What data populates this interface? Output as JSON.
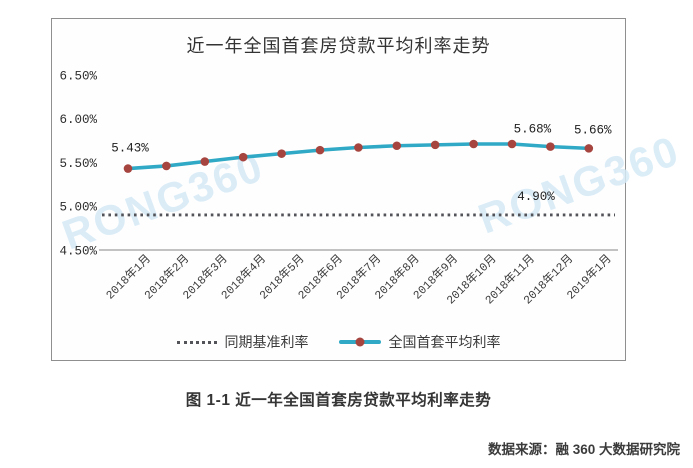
{
  "chart_data": {
    "type": "line",
    "title": "近一年全国首套房贷款平均利率走势",
    "categories": [
      "2018年1月",
      "2018年2月",
      "2018年3月",
      "2018年4月",
      "2018年5月",
      "2018年6月",
      "2018年7月",
      "2018年8月",
      "2018年9月",
      "2018年10月",
      "2018年11月",
      "2018年12月",
      "2019年1月"
    ],
    "series": [
      {
        "name": "同期基准利率",
        "style": "dotted",
        "color": "#53535a",
        "values": [
          4.9,
          4.9,
          4.9,
          4.9,
          4.9,
          4.9,
          4.9,
          4.9,
          4.9,
          4.9,
          4.9,
          4.9,
          4.9
        ]
      },
      {
        "name": "全国首套平均利率",
        "style": "solid-marker",
        "color": "#2fa9c5",
        "marker_color": "#a6453f",
        "values": [
          5.43,
          5.46,
          5.51,
          5.56,
          5.6,
          5.64,
          5.67,
          5.69,
          5.7,
          5.71,
          5.71,
          5.68,
          5.66
        ]
      }
    ],
    "y_ticks": [
      "6.50%",
      "6.00%",
      "5.50%",
      "5.00%",
      "4.50%"
    ],
    "ylim": [
      4.5,
      6.5
    ],
    "point_labels": [
      {
        "series": 1,
        "index": 0,
        "text": "5.43%"
      },
      {
        "series": 1,
        "index": 11,
        "text": "5.68%"
      },
      {
        "series": 1,
        "index": 12,
        "text": "5.66%"
      },
      {
        "series": 0,
        "index": 10,
        "text": "4.90%"
      }
    ],
    "legend_position": "bottom",
    "grid": false
  },
  "watermark": "RONG360",
  "caption": "图 1-1 近一年全国首套房贷款平均利率走势",
  "source": "数据来源：融 360 大数据研究院",
  "colors": {
    "line": "#2fa9c5",
    "marker": "#a6453f",
    "benchmark_dotted": "#53535a",
    "axis_line": "#aeaeae",
    "box_border": "#8f8f8f",
    "watermark": "#d5eaf6",
    "text": "#333333"
  }
}
